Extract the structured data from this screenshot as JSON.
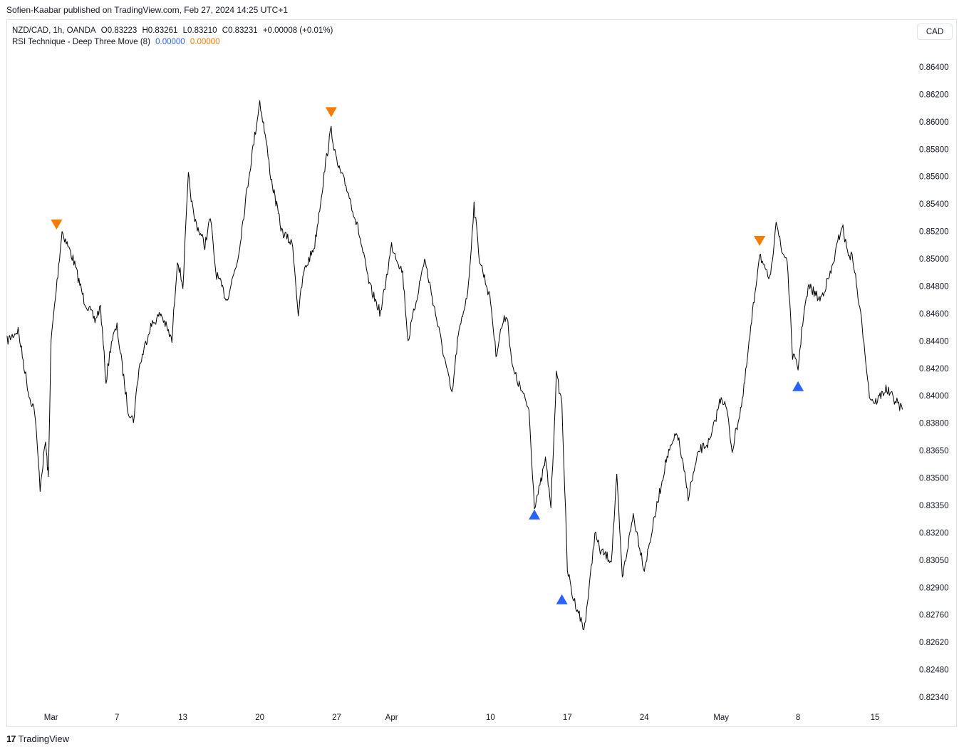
{
  "publish_line": "Sofien-Kaabar published on TradingView.com, Feb 27, 2024 14:25 UTC+1",
  "legend": {
    "symbol": "NZD/CAD, 1h, OANDA",
    "open": "O0.83223",
    "high": "H0.83261",
    "low": "L0.83210",
    "close": "C0.83231",
    "change": "+0.00008 (+0.01%)",
    "indicator_name": "RSI Technique - Deep Three Move (8)",
    "indicator_value_1": "0.00000",
    "indicator_value_2": "0.00000"
  },
  "currency_button": "CAD",
  "footer": {
    "logo_mark": "17",
    "brand": "TradingView"
  },
  "colors": {
    "line": "#000000",
    "bullish": "#2962ff",
    "bearish": "#f57c00",
    "border": "#e0e3eb"
  },
  "chart_data": {
    "type": "line",
    "title": "",
    "xlabel": "",
    "ylabel": "",
    "grid": false,
    "x_ticks": [
      "Mar",
      "7",
      "13",
      "20",
      "27",
      "Apr",
      "10",
      "17",
      "24",
      "May",
      "8",
      "15"
    ],
    "y_ticks": [
      "0.86400",
      "0.86200",
      "0.86000",
      "0.85800",
      "0.85600",
      "0.85400",
      "0.85200",
      "0.85000",
      "0.84800",
      "0.84600",
      "0.84400",
      "0.84200",
      "0.84000",
      "0.83800",
      "0.83650",
      "0.83500",
      "0.83350",
      "0.83200",
      "0.83050",
      "0.82900",
      "0.82760",
      "0.82620",
      "0.82480",
      "0.82340"
    ],
    "price_path": [
      [
        "Feb 26",
        0.844
      ],
      [
        "Feb 27",
        0.8448
      ],
      [
        "Feb 28",
        0.84
      ],
      [
        "Feb 28 12h",
        0.839
      ],
      [
        "Feb 29",
        0.8345
      ],
      [
        "Feb 29 12h",
        0.837
      ],
      [
        "Feb 29 18h",
        0.835
      ],
      [
        "Mar 1",
        0.844
      ],
      [
        "Mar 2",
        0.852
      ],
      [
        "Mar 3",
        0.85
      ],
      [
        "Mar 4",
        0.847
      ],
      [
        "Mar 5",
        0.8455
      ],
      [
        "Mar 5 12h",
        0.8465
      ],
      [
        "Mar 6",
        0.841
      ],
      [
        "Mar 6 12h",
        0.844
      ],
      [
        "Mar 7",
        0.845
      ],
      [
        "Mar 8",
        0.839
      ],
      [
        "Mar 8 12h",
        0.8382
      ],
      [
        "Mar 9",
        0.842
      ],
      [
        "Mar 10",
        0.845
      ],
      [
        "Mar 11",
        0.846
      ],
      [
        "Mar 12",
        0.844
      ],
      [
        "Mar 12 12h",
        0.85
      ],
      [
        "Mar 13",
        0.848
      ],
      [
        "Mar 13 12h",
        0.856
      ],
      [
        "Mar 14",
        0.853
      ],
      [
        "Mar 15",
        0.851
      ],
      [
        "Mar 15 12h",
        0.853
      ],
      [
        "Mar 16",
        0.849
      ],
      [
        "Mar 17",
        0.847
      ],
      [
        "Mar 18",
        0.85
      ],
      [
        "Mar 19",
        0.856
      ],
      [
        "Mar 20",
        0.8615
      ],
      [
        "Mar 20 12h",
        0.859
      ],
      [
        "Mar 21",
        0.856
      ],
      [
        "Mar 22",
        0.852
      ],
      [
        "Mar 23",
        0.851
      ],
      [
        "Mar 23 12h",
        0.846
      ],
      [
        "Mar 24",
        0.849
      ],
      [
        "Mar 25",
        0.851
      ],
      [
        "Mar 26",
        0.857
      ],
      [
        "Mar 26 12h",
        0.8595
      ],
      [
        "Mar 27",
        0.857
      ],
      [
        "Mar 28",
        0.855
      ],
      [
        "Mar 29",
        0.852
      ],
      [
        "Mar 30",
        0.848
      ],
      [
        "Mar 31",
        0.846
      ],
      [
        "Apr 1",
        0.851
      ],
      [
        "Apr 2",
        0.849
      ],
      [
        "Apr 2 12h",
        0.844
      ],
      [
        "Apr 3",
        0.846
      ],
      [
        "Apr 4",
        0.85
      ],
      [
        "Apr 5",
        0.846
      ],
      [
        "Apr 6",
        0.842
      ],
      [
        "Apr 6 12h",
        0.84
      ],
      [
        "Apr 7",
        0.844
      ],
      [
        "Apr 8",
        0.848
      ],
      [
        "Apr 8 12h",
        0.854
      ],
      [
        "Apr 9",
        0.85
      ],
      [
        "Apr 10",
        0.847
      ],
      [
        "Apr 10 12h",
        0.843
      ],
      [
        "Apr 11",
        0.845
      ],
      [
        "Apr 11 12h",
        0.846
      ],
      [
        "Apr 12",
        0.842
      ],
      [
        "Apr 13",
        0.84
      ],
      [
        "Apr 13 12h",
        0.839
      ],
      [
        "Apr 14",
        0.8335
      ],
      [
        "Apr 14 12h",
        0.8345
      ],
      [
        "Apr 15",
        0.836
      ],
      [
        "Apr 15 12h",
        0.8335
      ],
      [
        "Apr 16",
        0.8415
      ],
      [
        "Apr 16 12h",
        0.8395
      ],
      [
        "Apr 17",
        0.83
      ],
      [
        "Apr 17 12h",
        0.8285
      ],
      [
        "Apr 18",
        0.8278
      ],
      [
        "Apr 18 12h",
        0.8268
      ],
      [
        "Apr 19",
        0.829
      ],
      [
        "Apr 19 12h",
        0.832
      ],
      [
        "Apr 20",
        0.831
      ],
      [
        "Apr 21",
        0.8305
      ],
      [
        "Apr 21 12h",
        0.835
      ],
      [
        "Apr 22",
        0.8295
      ],
      [
        "Apr 23",
        0.833
      ],
      [
        "Apr 23 12h",
        0.8315
      ],
      [
        "Apr 24",
        0.83
      ],
      [
        "Apr 25",
        0.833
      ],
      [
        "Apr 26",
        0.836
      ],
      [
        "Apr 27",
        0.8375
      ],
      [
        "Apr 28",
        0.834
      ],
      [
        "Apr 29",
        0.8365
      ],
      [
        "Apr 30",
        0.837
      ],
      [
        "May 1",
        0.84
      ],
      [
        "May 1 12h",
        0.839
      ],
      [
        "May 2",
        0.8365
      ],
      [
        "May 3",
        0.84
      ],
      [
        "May 4",
        0.847
      ],
      [
        "May 4 12h",
        0.8505
      ],
      [
        "May 5",
        0.849
      ],
      [
        "May 5 12h",
        0.8485
      ],
      [
        "May 6",
        0.853
      ],
      [
        "May 6 12h",
        0.8505
      ],
      [
        "May 7",
        0.85
      ],
      [
        "May 7 12h",
        0.843
      ],
      [
        "May 8",
        0.842
      ],
      [
        "May 8 12h",
        0.846
      ],
      [
        "May 9",
        0.848
      ],
      [
        "May 10",
        0.847
      ],
      [
        "May 11",
        0.849
      ],
      [
        "May 12",
        0.8525
      ],
      [
        "May 12 12h",
        0.8505
      ],
      [
        "May 13",
        0.85
      ],
      [
        "May 14",
        0.844
      ],
      [
        "May 14 12h",
        0.84
      ],
      [
        "May 15",
        0.8395
      ],
      [
        "May 16",
        0.8405
      ],
      [
        "May 17",
        0.8395
      ],
      [
        "May 17 12h",
        0.839
      ]
    ],
    "signals": [
      {
        "type": "bearish",
        "date": "Mar 1 12h",
        "price": 0.8525
      },
      {
        "type": "bearish",
        "date": "Mar 26 12h",
        "price": 0.8607
      },
      {
        "type": "bullish",
        "date": "Apr 14",
        "price": 0.833
      },
      {
        "type": "bullish",
        "date": "Apr 16 12h",
        "price": 0.8284
      },
      {
        "type": "bearish",
        "date": "May 4 12h",
        "price": 0.8513
      },
      {
        "type": "bullish",
        "date": "May 8",
        "price": 0.8407
      }
    ]
  }
}
